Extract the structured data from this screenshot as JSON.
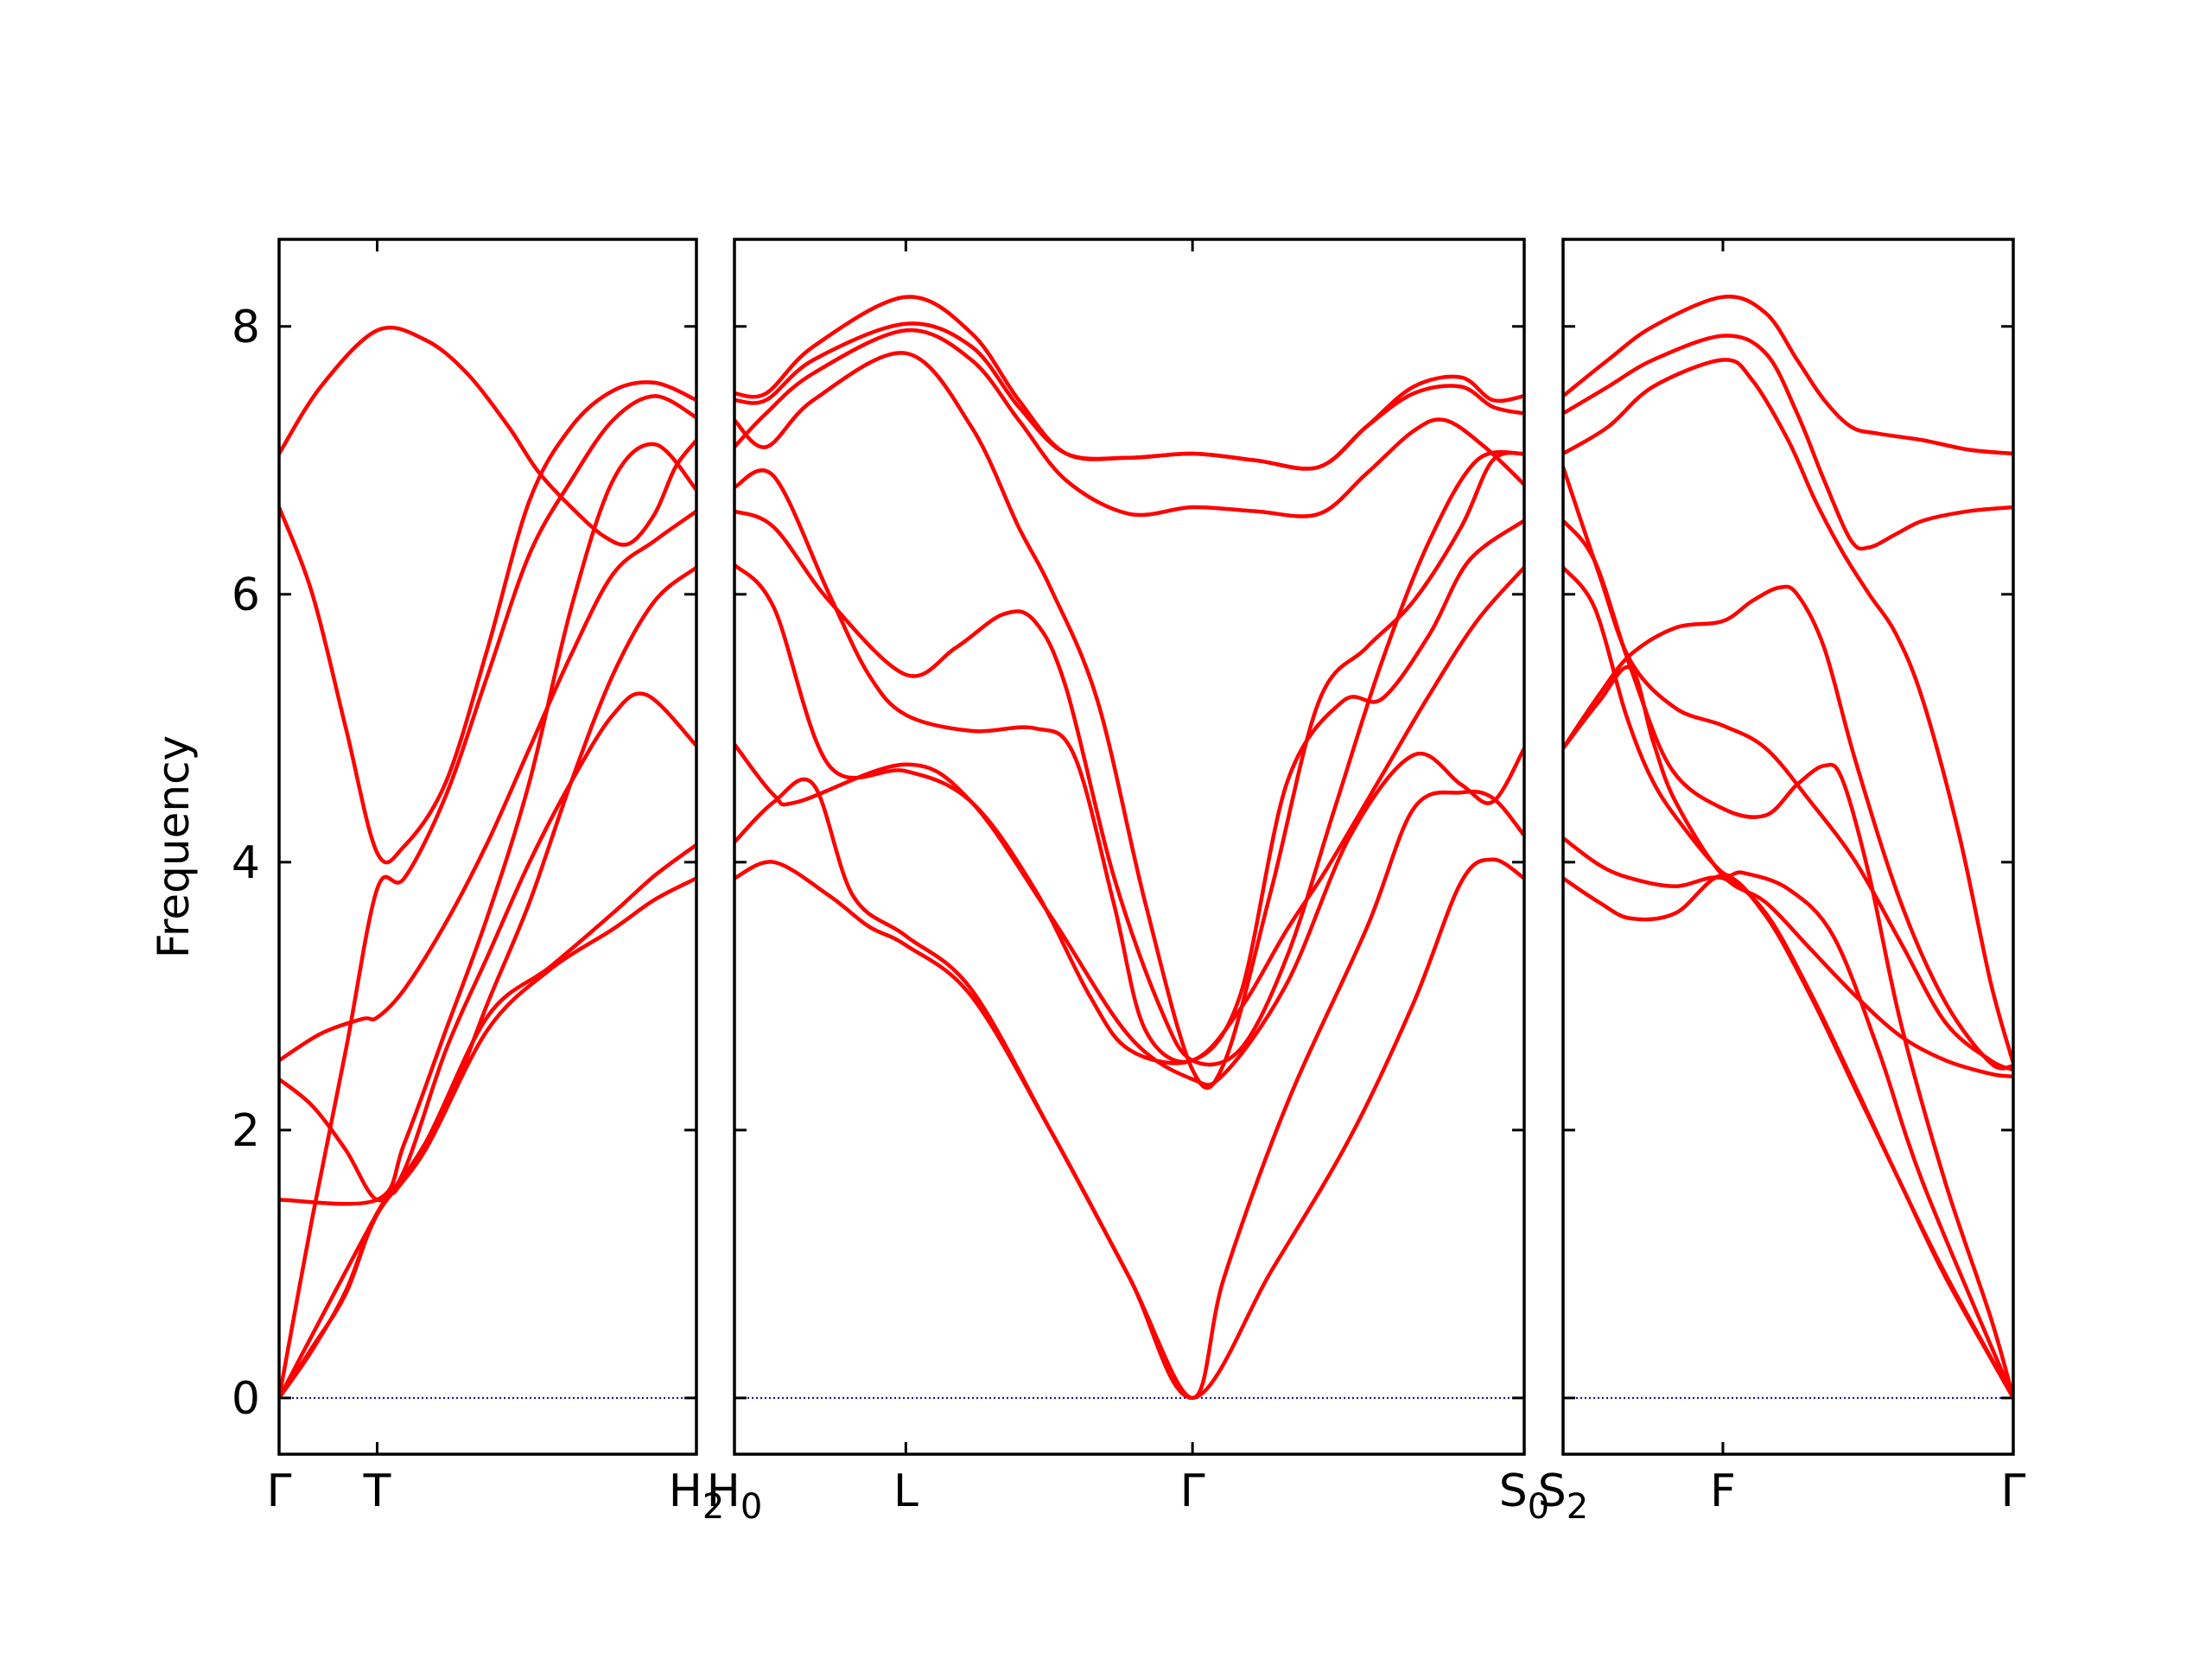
{
  "chart_data": {
    "type": "line",
    "ylabel": "Frequency",
    "ylim": [
      -0.42,
      8.65
    ],
    "yticks": [
      0,
      2,
      4,
      6,
      8
    ],
    "line_color": "#ff0000",
    "zero_line_color": "#0000cc",
    "panels": [
      {
        "xlim": [
          0,
          1
        ],
        "ticks": [
          {
            "x": 0,
            "label": "Γ",
            "sub": ""
          },
          {
            "x": 0.235,
            "label": "T",
            "sub": ""
          },
          {
            "x": 1,
            "label": "H",
            "sub": "2"
          }
        ],
        "series": [
          {
            "x": [
              0,
              0.08,
              0.16,
              0.235,
              0.35,
              0.5,
              0.65,
              0.8,
              0.9,
              1
            ],
            "y": [
              0,
              0.38,
              0.78,
              1.37,
              1.85,
              2.75,
              3.2,
              3.5,
              3.72,
              3.88
            ]
          },
          {
            "x": [
              0,
              0.08,
              0.16,
              0.235,
              0.35,
              0.5,
              0.65,
              0.8,
              0.9,
              1
            ],
            "y": [
              0,
              0.36,
              0.8,
              1.38,
              1.9,
              2.85,
              3.22,
              3.62,
              3.9,
              4.13
            ]
          },
          {
            "x": [
              0,
              0.08,
              0.16,
              0.235,
              0.3,
              0.4,
              0.5,
              0.6,
              0.7,
              0.8,
              0.88,
              1
            ],
            "y": [
              2.38,
              2.18,
              1.85,
              1.48,
              1.7,
              2.6,
              3.3,
              4.0,
              4.6,
              5.1,
              5.25,
              4.87
            ]
          },
          {
            "x": [
              0,
              0.08,
              0.16,
              0.235,
              0.3,
              0.4,
              0.5,
              0.6,
              0.7,
              0.8,
              0.9,
              1
            ],
            "y": [
              0,
              1.35,
              2.6,
              3.8,
              3.88,
              4.5,
              5.4,
              6.3,
              6.85,
              7.3,
              7.48,
              7.32
            ]
          },
          {
            "x": [
              0,
              0.1,
              0.2,
              0.235,
              0.3,
              0.4,
              0.5,
              0.6,
              0.7,
              0.8,
              0.9,
              1
            ],
            "y": [
              2.52,
              2.72,
              2.83,
              2.84,
              3.05,
              3.55,
              4.15,
              4.85,
              5.55,
              6.15,
              6.4,
              6.62
            ]
          },
          {
            "x": [
              0,
              0.235,
              0.28,
              0.35,
              0.42,
              0.5,
              0.6,
              0.7,
              0.8,
              0.9,
              1
            ],
            "y": [
              0,
              1.38,
              1.55,
              1.85,
              2.3,
              2.95,
              3.7,
              4.6,
              5.4,
              5.95,
              6.2
            ]
          },
          {
            "x": [
              0,
              0.08,
              0.16,
              0.235,
              0.3,
              0.4,
              0.5,
              0.6,
              0.7,
              0.8,
              0.9,
              1
            ],
            "y": [
              6.65,
              6.0,
              5.0,
              4.07,
              4.12,
              4.6,
              5.6,
              6.7,
              7.25,
              7.52,
              7.58,
              7.45
            ]
          },
          {
            "x": [
              0,
              0.1,
              0.235,
              0.35,
              0.45,
              0.55,
              0.62,
              0.7,
              0.78,
              0.84,
              0.9,
              0.95,
              1
            ],
            "y": [
              7.05,
              7.55,
              7.97,
              7.9,
              7.65,
              7.25,
              6.92,
              6.65,
              6.43,
              6.38,
              6.6,
              6.95,
              7.15
            ]
          },
          {
            "x": [
              0,
              0.235,
              0.3,
              0.4,
              0.5,
              0.6,
              0.7,
              0.8,
              0.9,
              1
            ],
            "y": [
              1.48,
              1.48,
              1.9,
              2.75,
              3.6,
              4.6,
              5.9,
              6.85,
              7.12,
              6.78
            ]
          }
        ]
      },
      {
        "xlim": [
          0,
          1
        ],
        "ticks": [
          {
            "x": 0,
            "label": "H",
            "sub": "0"
          },
          {
            "x": 0.217,
            "label": "L",
            "sub": ""
          },
          {
            "x": 0.58,
            "label": "Γ",
            "sub": ""
          },
          {
            "x": 1,
            "label": "S",
            "sub": "0"
          }
        ],
        "series": [
          {
            "x": [
              0,
              0.05,
              0.12,
              0.17,
              0.217,
              0.3,
              0.4,
              0.5,
              0.58,
              0.68,
              0.78,
              0.86,
              0.92,
              0.96,
              1
            ],
            "y": [
              3.88,
              4.0,
              3.75,
              3.52,
              3.38,
              3.0,
              2.0,
              0.9,
              0,
              0.95,
              1.95,
              2.95,
              3.85,
              4.02,
              3.88
            ]
          },
          {
            "x": [
              0,
              0.05,
              0.1,
              0.15,
              0.217,
              0.3,
              0.4,
              0.5,
              0.58,
              0.62,
              0.7,
              0.8,
              0.86,
              0.92,
              0.96,
              1
            ],
            "y": [
              4.15,
              4.45,
              4.58,
              3.75,
              3.45,
              3.05,
              2.0,
              0.9,
              0,
              0.9,
              2.2,
              3.5,
              4.4,
              4.52,
              4.48,
              4.2
            ]
          },
          {
            "x": [
              0,
              0.05,
              0.08,
              0.217,
              0.3,
              0.4,
              0.5,
              0.58,
              0.62,
              0.7,
              0.78,
              0.86,
              0.92,
              0.96,
              1
            ],
            "y": [
              4.88,
              4.5,
              4.45,
              4.73,
              4.45,
              3.6,
              2.7,
              2.38,
              2.42,
              3.1,
              4.2,
              4.8,
              4.58,
              4.45,
              4.85
            ]
          },
          {
            "x": [
              0,
              0.05,
              0.12,
              0.217,
              0.3,
              0.38,
              0.45,
              0.5,
              0.58,
              0.64,
              0.7,
              0.75,
              0.82,
              0.88,
              0.94,
              1
            ],
            "y": [
              6.22,
              5.9,
              4.72,
              4.68,
              4.45,
              3.8,
              3.0,
              2.6,
              2.52,
              2.9,
              3.5,
              3.95,
              4.65,
              5.25,
              5.8,
              6.2
            ]
          },
          {
            "x": [
              0,
              0.05,
              0.12,
              0.17,
              0.217,
              0.3,
              0.38,
              0.43,
              0.48,
              0.52,
              0.58,
              0.64,
              0.7,
              0.77,
              0.82,
              0.88,
              0.93,
              1
            ],
            "y": [
              6.8,
              6.88,
              6.0,
              5.4,
              5.1,
              4.98,
              5.0,
              4.8,
              3.7,
              2.75,
              2.52,
              3.0,
              4.6,
              5.2,
              5.22,
              5.7,
              6.25,
              6.55
            ]
          },
          {
            "x": [
              0,
              0.05,
              0.12,
              0.217,
              0.28,
              0.34,
              0.38,
              0.42,
              0.48,
              0.54,
              0.58,
              0.64,
              0.7,
              0.76,
              0.82,
              0.88,
              0.94,
              1
            ],
            "y": [
              6.62,
              6.5,
              5.95,
              5.4,
              5.6,
              5.85,
              5.8,
              5.3,
              3.9,
              2.9,
              2.52,
              2.6,
              3.3,
              4.4,
              5.5,
              6.4,
              7.0,
              7.05
            ]
          },
          {
            "x": [
              0,
              0.04,
              0.1,
              0.217,
              0.3,
              0.36,
              0.4,
              0.46,
              0.52,
              0.58,
              0.62,
              0.68,
              0.74,
              0.8,
              0.86,
              0.92,
              0.96,
              1
            ],
            "y": [
              7.3,
              7.1,
              7.45,
              7.8,
              7.25,
              6.5,
              6.05,
              5.2,
              3.7,
              2.45,
              2.5,
              3.8,
              5.2,
              5.6,
              5.95,
              6.5,
              7.0,
              7.05
            ]
          },
          {
            "x": [
              0,
              0.04,
              0.1,
              0.217,
              0.3,
              0.36,
              0.42,
              0.5,
              0.58,
              0.66,
              0.74,
              0.8,
              0.86,
              0.9,
              0.95,
              1
            ],
            "y": [
              7.1,
              7.35,
              7.65,
              7.97,
              7.75,
              7.3,
              6.85,
              6.6,
              6.65,
              6.62,
              6.6,
              6.9,
              7.22,
              7.3,
              7.1,
              6.82
            ]
          },
          {
            "x": [
              0,
              0.04,
              0.1,
              0.217,
              0.3,
              0.36,
              0.42,
              0.5,
              0.58,
              0.66,
              0.74,
              0.8,
              0.86,
              0.92,
              0.96,
              1
            ],
            "y": [
              7.5,
              7.5,
              7.85,
              8.22,
              7.95,
              7.45,
              7.05,
              7.02,
              7.05,
              7.0,
              6.95,
              7.25,
              7.55,
              7.62,
              7.45,
              7.48
            ]
          },
          {
            "x": [
              0,
              0.04,
              0.1,
              0.217,
              0.3,
              0.36,
              0.42,
              0.5,
              0.58,
              0.66,
              0.74,
              0.8,
              0.86,
              0.92,
              0.96,
              1
            ],
            "y": [
              7.45,
              7.45,
              7.75,
              8.02,
              7.85,
              7.4,
              7.05,
              7.02,
              7.05,
              7.0,
              6.95,
              7.25,
              7.5,
              7.55,
              7.4,
              7.35
            ]
          }
        ]
      },
      {
        "xlim": [
          0,
          1
        ],
        "ticks": [
          {
            "x": 0,
            "label": "S",
            "sub": "2"
          },
          {
            "x": 0.355,
            "label": "F",
            "sub": ""
          },
          {
            "x": 1,
            "label": "Γ",
            "sub": ""
          }
        ],
        "series": [
          {
            "x": [
              0,
              0.08,
              0.15,
              0.25,
              0.355,
              0.45,
              0.55,
              0.65,
              0.75,
              0.85,
              1
            ],
            "y": [
              3.88,
              3.7,
              3.58,
              3.62,
              3.9,
              3.6,
              3.0,
              2.3,
              1.6,
              0.9,
              0
            ]
          },
          {
            "x": [
              0,
              0.08,
              0.15,
              0.25,
              0.355,
              0.45,
              0.55,
              0.65,
              0.75,
              0.85,
              1
            ],
            "y": [
              4.18,
              3.98,
              3.88,
              3.82,
              3.88,
              3.62,
              3.02,
              2.32,
              1.6,
              0.92,
              0
            ]
          },
          {
            "x": [
              0,
              0.07,
              0.14,
              0.2,
              0.27,
              0.355,
              0.4,
              0.5,
              0.6,
              0.7,
              0.8,
              1
            ],
            "y": [
              6.2,
              5.9,
              5.1,
              4.6,
              4.25,
              3.92,
              3.92,
              3.8,
              3.45,
              2.6,
              1.6,
              0
            ]
          },
          {
            "x": [
              0,
              0.07,
              0.15,
              0.24,
              0.355,
              0.45,
              0.52,
              0.58,
              0.62,
              0.68,
              0.75,
              0.85,
              0.95,
              1
            ],
            "y": [
              6.55,
              6.25,
              5.45,
              4.7,
              4.4,
              4.35,
              4.58,
              4.72,
              4.62,
              3.9,
              2.8,
              1.6,
              0.6,
              0
            ]
          },
          {
            "x": [
              0,
              0.08,
              0.15,
              0.2,
              0.25,
              0.355,
              0.45,
              0.55,
              0.65,
              0.75,
              0.85,
              0.95,
              1
            ],
            "y": [
              4.85,
              5.2,
              5.45,
              4.9,
              4.45,
              3.9,
              3.7,
              3.35,
              3.0,
              2.7,
              2.52,
              2.42,
              2.4
            ]
          },
          {
            "x": [
              0,
              0.08,
              0.15,
              0.25,
              0.355,
              0.45,
              0.55,
              0.65,
              0.75,
              0.85,
              0.95,
              1
            ],
            "y": [
              6.95,
              6.15,
              5.5,
              5.15,
              5.02,
              4.85,
              4.45,
              4.0,
              3.4,
              2.8,
              2.52,
              2.45
            ]
          },
          {
            "x": [
              0,
              0.08,
              0.15,
              0.25,
              0.355,
              0.42,
              0.48,
              0.52,
              0.58,
              0.65,
              0.75,
              0.85,
              0.95,
              1
            ],
            "y": [
              4.85,
              5.25,
              5.55,
              5.75,
              5.8,
              5.95,
              6.05,
              6.0,
              5.6,
              4.75,
              3.7,
              2.95,
              2.5,
              2.48
            ]
          },
          {
            "x": [
              0,
              0.1,
              0.2,
              0.355,
              0.42,
              0.5,
              0.56,
              0.62,
              0.68,
              0.74,
              0.8,
              0.88,
              0.95,
              1
            ],
            "y": [
              7.05,
              7.25,
              7.55,
              7.75,
              7.6,
              7.15,
              6.7,
              6.32,
              6.0,
              5.7,
              5.2,
              4.2,
              3.1,
              2.5
            ]
          },
          {
            "x": [
              0,
              0.1,
              0.2,
              0.355,
              0.45,
              0.52,
              0.58,
              0.64,
              0.68,
              0.74,
              0.8,
              0.9,
              1
            ],
            "y": [
              7.35,
              7.55,
              7.75,
              7.93,
              7.8,
              7.35,
              6.85,
              6.4,
              6.35,
              6.45,
              6.55,
              6.62,
              6.65
            ]
          },
          {
            "x": [
              0,
              0.1,
              0.2,
              0.355,
              0.45,
              0.52,
              0.58,
              0.64,
              0.7,
              0.8,
              0.9,
              1
            ],
            "y": [
              7.48,
              7.75,
              8.0,
              8.22,
              8.1,
              7.75,
              7.45,
              7.25,
              7.2,
              7.15,
              7.08,
              7.05
            ]
          }
        ]
      }
    ]
  }
}
